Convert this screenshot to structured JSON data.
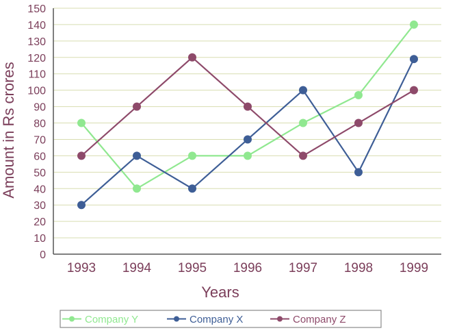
{
  "chart_data": {
    "type": "line",
    "categories": [
      "1993",
      "1994",
      "1995",
      "1996",
      "1997",
      "1998",
      "1999"
    ],
    "series": [
      {
        "name": "Company Y",
        "values": [
          80,
          40,
          60,
          60,
          80,
          97,
          140
        ],
        "color": "#90e890"
      },
      {
        "name": "Company X",
        "values": [
          30,
          60,
          40,
          70,
          100,
          50,
          119
        ],
        "color": "#3e5e96"
      },
      {
        "name": "Company Z",
        "values": [
          60,
          90,
          120,
          90,
          60,
          80,
          100
        ],
        "color": "#8e4a6a"
      }
    ],
    "title": "",
    "xlabel": "Years",
    "ylabel": "Amount in Rs crores",
    "ylim": [
      0,
      150
    ],
    "yticks": [
      "0",
      "10",
      "20",
      "30",
      "40",
      "50",
      "60",
      "70",
      "80",
      "90",
      "100",
      "110",
      "120",
      "130",
      "140",
      "150"
    ],
    "grid": true,
    "legend_position": "bottom",
    "text_color": "#7b3e5a",
    "grid_color": "#d8ddb0"
  }
}
